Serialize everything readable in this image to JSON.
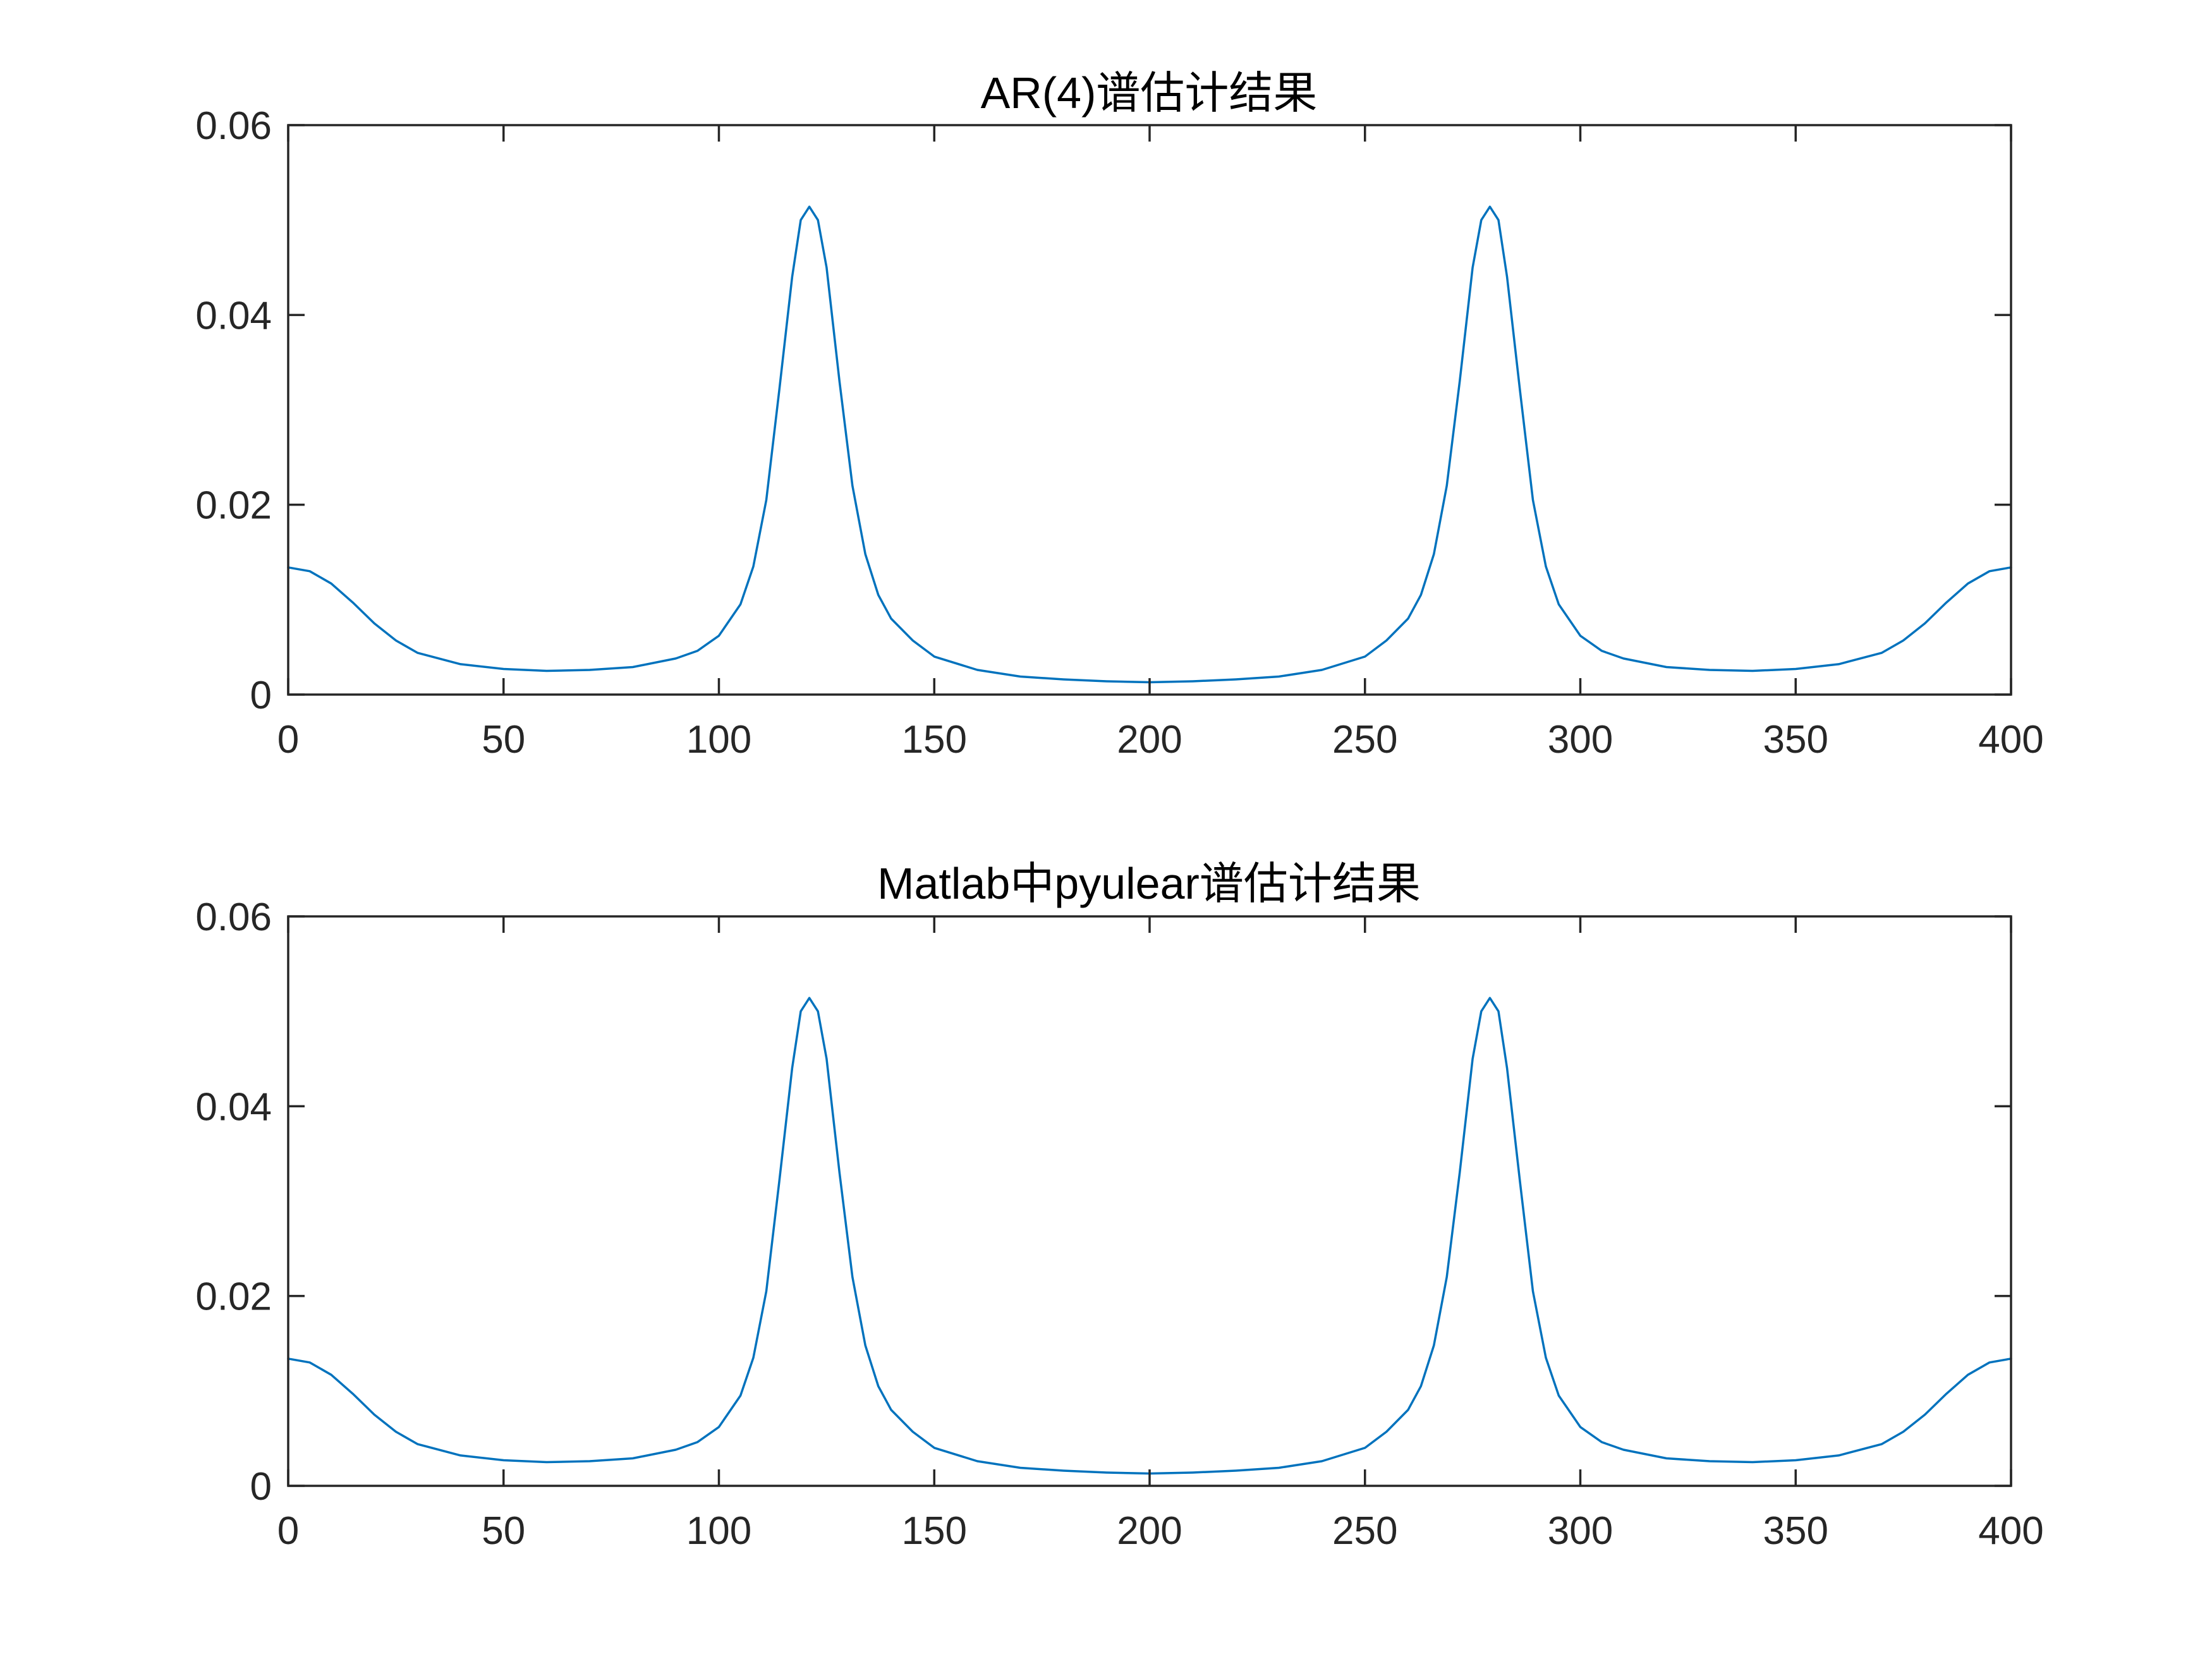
{
  "colors": {
    "series": "#0072BD",
    "axes": "#262626",
    "background": "#ffffff"
  },
  "chart_data": [
    {
      "type": "line",
      "title": "AR(4)谱估计结果",
      "xlabel": "",
      "ylabel": "",
      "xlim": [
        0,
        400
      ],
      "ylim": [
        0,
        0.06
      ],
      "xticks": [
        0,
        50,
        100,
        150,
        200,
        250,
        300,
        350,
        400
      ],
      "xtick_labels": [
        "0",
        "50",
        "100",
        "150",
        "200",
        "250",
        "300",
        "350",
        "400"
      ],
      "yticks": [
        0,
        0.02,
        0.04,
        0.06
      ],
      "ytick_labels": [
        "0",
        "0.02",
        "0.04",
        "0.06"
      ],
      "series": [
        {
          "name": "AR(4)",
          "x": [
            0,
            5,
            10,
            15,
            20,
            25,
            30,
            40,
            50,
            60,
            70,
            80,
            90,
            95,
            100,
            105,
            108,
            111,
            114,
            117,
            119,
            121,
            123,
            125,
            128,
            131,
            134,
            137,
            140,
            145,
            150,
            160,
            170,
            180,
            190,
            200,
            210,
            220,
            230,
            240,
            250,
            255,
            260,
            263,
            266,
            269,
            272,
            275,
            277,
            279,
            281,
            283,
            286,
            289,
            292,
            295,
            300,
            305,
            310,
            320,
            330,
            340,
            350,
            360,
            370,
            375,
            380,
            385,
            390,
            395,
            400
          ],
          "y": [
            0.0134,
            0.013,
            0.0117,
            0.0097,
            0.0075,
            0.0057,
            0.0044,
            0.0032,
            0.0027,
            0.0025,
            0.0026,
            0.0029,
            0.0038,
            0.0046,
            0.0062,
            0.0095,
            0.0135,
            0.0205,
            0.032,
            0.044,
            0.05,
            0.0514,
            0.05,
            0.045,
            0.033,
            0.022,
            0.0148,
            0.0105,
            0.008,
            0.0057,
            0.004,
            0.0026,
            0.0019,
            0.0016,
            0.0014,
            0.0013,
            0.0014,
            0.0016,
            0.0019,
            0.0026,
            0.004,
            0.0057,
            0.008,
            0.0105,
            0.0148,
            0.022,
            0.033,
            0.045,
            0.05,
            0.0514,
            0.05,
            0.044,
            0.032,
            0.0205,
            0.0135,
            0.0095,
            0.0062,
            0.0046,
            0.0038,
            0.0029,
            0.0026,
            0.0025,
            0.0027,
            0.0032,
            0.0044,
            0.0057,
            0.0075,
            0.0097,
            0.0117,
            0.013,
            0.0134
          ]
        }
      ]
    },
    {
      "type": "line",
      "title": "Matlab中pyulear谱估计结果",
      "xlabel": "",
      "ylabel": "",
      "xlim": [
        0,
        400
      ],
      "ylim": [
        0,
        0.06
      ],
      "xticks": [
        0,
        50,
        100,
        150,
        200,
        250,
        300,
        350,
        400
      ],
      "xtick_labels": [
        "0",
        "50",
        "100",
        "150",
        "200",
        "250",
        "300",
        "350",
        "400"
      ],
      "yticks": [
        0,
        0.02,
        0.04,
        0.06
      ],
      "ytick_labels": [
        "0",
        "0.02",
        "0.04",
        "0.06"
      ],
      "series": [
        {
          "name": "pyulear",
          "x": [
            0,
            5,
            10,
            15,
            20,
            25,
            30,
            40,
            50,
            60,
            70,
            80,
            90,
            95,
            100,
            105,
            108,
            111,
            114,
            117,
            119,
            121,
            123,
            125,
            128,
            131,
            134,
            137,
            140,
            145,
            150,
            160,
            170,
            180,
            190,
            200,
            210,
            220,
            230,
            240,
            250,
            255,
            260,
            263,
            266,
            269,
            272,
            275,
            277,
            279,
            281,
            283,
            286,
            289,
            292,
            295,
            300,
            305,
            310,
            320,
            330,
            340,
            350,
            360,
            370,
            375,
            380,
            385,
            390,
            395,
            400
          ],
          "y": [
            0.0134,
            0.013,
            0.0117,
            0.0097,
            0.0075,
            0.0057,
            0.0044,
            0.0032,
            0.0027,
            0.0025,
            0.0026,
            0.0029,
            0.0038,
            0.0046,
            0.0062,
            0.0095,
            0.0135,
            0.0205,
            0.032,
            0.044,
            0.05,
            0.0514,
            0.05,
            0.045,
            0.033,
            0.022,
            0.0148,
            0.0105,
            0.008,
            0.0057,
            0.004,
            0.0026,
            0.0019,
            0.0016,
            0.0014,
            0.0013,
            0.0014,
            0.0016,
            0.0019,
            0.0026,
            0.004,
            0.0057,
            0.008,
            0.0105,
            0.0148,
            0.022,
            0.033,
            0.045,
            0.05,
            0.0514,
            0.05,
            0.044,
            0.032,
            0.0205,
            0.0135,
            0.0095,
            0.0062,
            0.0046,
            0.0038,
            0.0029,
            0.0026,
            0.0025,
            0.0027,
            0.0032,
            0.0044,
            0.0057,
            0.0075,
            0.0097,
            0.0117,
            0.013,
            0.0134
          ]
        }
      ]
    }
  ]
}
